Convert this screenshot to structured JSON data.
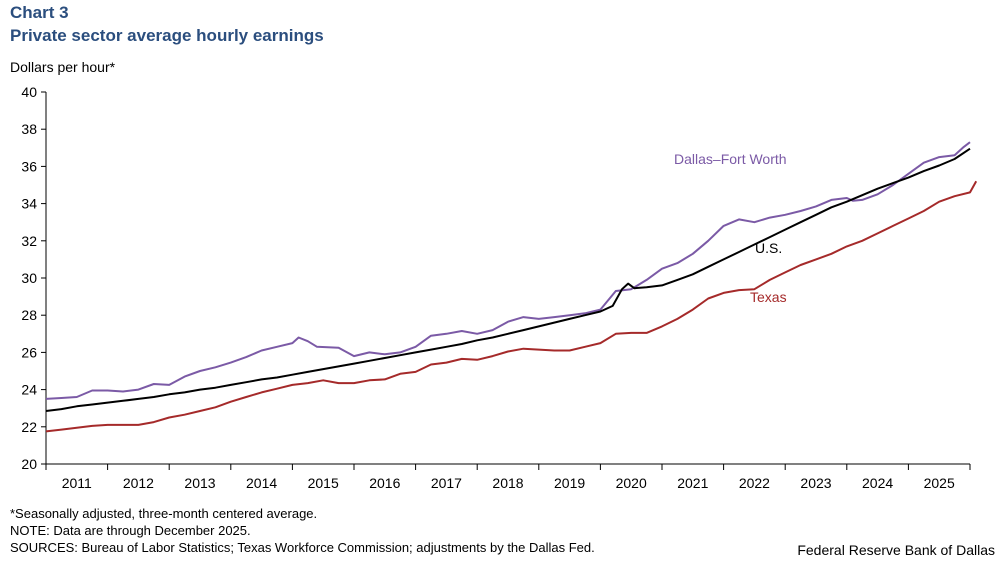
{
  "header": {
    "chart_number": "Chart 3",
    "title": "Private sector average hourly earnings"
  },
  "footer": {
    "note_seasonal": "*Seasonally adjusted, three-month centered average.",
    "note_data": "NOTE: Data are through December 2025.",
    "sources": "SOURCES: Bureau of Labor Statistics; Texas Workforce Commission; adjustments by the Dallas Fed.",
    "credit": "Federal Reserve Bank of Dallas"
  },
  "colors": {
    "dfw": "#7b5aa6",
    "us": "#000000",
    "texas": "#a52a2a",
    "axis": "#000000"
  },
  "chart_data": {
    "type": "line",
    "title": "Private sector average hourly earnings",
    "ylabel": "Dollars per hour*",
    "xlabel": "",
    "ylim": [
      20,
      40
    ],
    "yticks": [
      20,
      22,
      24,
      26,
      28,
      30,
      32,
      34,
      36,
      38,
      40
    ],
    "xlim": [
      2011.0,
      2026.0
    ],
    "x_tick_labels": [
      "2011",
      "2012",
      "2013",
      "2014",
      "2015",
      "2016",
      "2017",
      "2018",
      "2019",
      "2020",
      "2021",
      "2022",
      "2023",
      "2024",
      "2025"
    ],
    "grid": false,
    "series": [
      {
        "name": "Dallas–Fort Worth",
        "label": "Dallas–Fort Worth",
        "color_key": "dfw",
        "points": [
          [
            2011.0,
            23.5
          ],
          [
            2011.25,
            23.55
          ],
          [
            2011.5,
            23.6
          ],
          [
            2011.75,
            23.95
          ],
          [
            2012.0,
            23.95
          ],
          [
            2012.25,
            23.9
          ],
          [
            2012.5,
            24.0
          ],
          [
            2012.75,
            24.3
          ],
          [
            2013.0,
            24.25
          ],
          [
            2013.25,
            24.7
          ],
          [
            2013.5,
            25.0
          ],
          [
            2013.75,
            25.2
          ],
          [
            2014.0,
            25.45
          ],
          [
            2014.25,
            25.75
          ],
          [
            2014.5,
            26.1
          ],
          [
            2014.75,
            26.3
          ],
          [
            2015.0,
            26.5
          ],
          [
            2015.1,
            26.8
          ],
          [
            2015.25,
            26.6
          ],
          [
            2015.4,
            26.3
          ],
          [
            2015.75,
            26.25
          ],
          [
            2016.0,
            25.8
          ],
          [
            2016.25,
            26.0
          ],
          [
            2016.5,
            25.9
          ],
          [
            2016.75,
            26.0
          ],
          [
            2017.0,
            26.3
          ],
          [
            2017.25,
            26.9
          ],
          [
            2017.5,
            27.0
          ],
          [
            2017.75,
            27.15
          ],
          [
            2018.0,
            27.0
          ],
          [
            2018.25,
            27.2
          ],
          [
            2018.5,
            27.65
          ],
          [
            2018.75,
            27.9
          ],
          [
            2019.0,
            27.8
          ],
          [
            2019.25,
            27.9
          ],
          [
            2019.5,
            28.0
          ],
          [
            2019.75,
            28.1
          ],
          [
            2020.0,
            28.3
          ],
          [
            2020.25,
            29.3
          ],
          [
            2020.5,
            29.4
          ],
          [
            2020.75,
            29.9
          ],
          [
            2021.0,
            30.5
          ],
          [
            2021.25,
            30.8
          ],
          [
            2021.5,
            31.3
          ],
          [
            2021.75,
            32.0
          ],
          [
            2022.0,
            32.8
          ],
          [
            2022.25,
            33.15
          ],
          [
            2022.5,
            33.0
          ],
          [
            2022.75,
            33.25
          ],
          [
            2023.0,
            33.4
          ],
          [
            2023.25,
            33.6
          ],
          [
            2023.5,
            33.85
          ],
          [
            2023.75,
            34.2
          ],
          [
            2024.0,
            34.3
          ],
          [
            2024.1,
            34.15
          ],
          [
            2024.25,
            34.2
          ],
          [
            2024.5,
            34.5
          ],
          [
            2024.75,
            35.0
          ],
          [
            2025.0,
            35.6
          ],
          [
            2025.25,
            36.2
          ],
          [
            2025.5,
            36.5
          ],
          [
            2025.75,
            36.6
          ],
          [
            2025.9,
            37.05
          ],
          [
            2026.0,
            37.3
          ]
        ]
      },
      {
        "name": "U.S.",
        "label": "U.S.",
        "color_key": "us",
        "points": [
          [
            2011.0,
            22.85
          ],
          [
            2011.25,
            22.95
          ],
          [
            2011.5,
            23.1
          ],
          [
            2011.75,
            23.2
          ],
          [
            2012.0,
            23.3
          ],
          [
            2012.25,
            23.4
          ],
          [
            2012.5,
            23.5
          ],
          [
            2012.75,
            23.6
          ],
          [
            2013.0,
            23.75
          ],
          [
            2013.25,
            23.85
          ],
          [
            2013.5,
            24.0
          ],
          [
            2013.75,
            24.1
          ],
          [
            2014.0,
            24.25
          ],
          [
            2014.25,
            24.4
          ],
          [
            2014.5,
            24.55
          ],
          [
            2014.75,
            24.65
          ],
          [
            2015.0,
            24.8
          ],
          [
            2015.25,
            24.95
          ],
          [
            2015.5,
            25.1
          ],
          [
            2015.75,
            25.25
          ],
          [
            2016.0,
            25.4
          ],
          [
            2016.25,
            25.55
          ],
          [
            2016.5,
            25.7
          ],
          [
            2016.75,
            25.85
          ],
          [
            2017.0,
            26.0
          ],
          [
            2017.25,
            26.15
          ],
          [
            2017.5,
            26.3
          ],
          [
            2017.75,
            26.45
          ],
          [
            2018.0,
            26.65
          ],
          [
            2018.25,
            26.8
          ],
          [
            2018.5,
            27.0
          ],
          [
            2018.75,
            27.2
          ],
          [
            2019.0,
            27.4
          ],
          [
            2019.25,
            27.6
          ],
          [
            2019.5,
            27.8
          ],
          [
            2019.75,
            28.0
          ],
          [
            2020.0,
            28.2
          ],
          [
            2020.2,
            28.5
          ],
          [
            2020.35,
            29.4
          ],
          [
            2020.45,
            29.7
          ],
          [
            2020.55,
            29.45
          ],
          [
            2020.75,
            29.5
          ],
          [
            2021.0,
            29.6
          ],
          [
            2021.25,
            29.9
          ],
          [
            2021.5,
            30.2
          ],
          [
            2021.75,
            30.6
          ],
          [
            2022.0,
            31.0
          ],
          [
            2022.25,
            31.4
          ],
          [
            2022.5,
            31.8
          ],
          [
            2022.75,
            32.2
          ],
          [
            2023.0,
            32.6
          ],
          [
            2023.25,
            33.0
          ],
          [
            2023.5,
            33.4
          ],
          [
            2023.75,
            33.8
          ],
          [
            2024.0,
            34.1
          ],
          [
            2024.25,
            34.45
          ],
          [
            2024.5,
            34.8
          ],
          [
            2024.75,
            35.1
          ],
          [
            2025.0,
            35.4
          ],
          [
            2025.25,
            35.75
          ],
          [
            2025.5,
            36.05
          ],
          [
            2025.75,
            36.4
          ],
          [
            2026.0,
            36.95
          ]
        ]
      },
      {
        "name": "Texas",
        "label": "Texas",
        "color_key": "texas",
        "points": [
          [
            2011.0,
            21.75
          ],
          [
            2011.25,
            21.85
          ],
          [
            2011.5,
            21.95
          ],
          [
            2011.75,
            22.05
          ],
          [
            2012.0,
            22.1
          ],
          [
            2012.25,
            22.1
          ],
          [
            2012.5,
            22.1
          ],
          [
            2012.75,
            22.25
          ],
          [
            2013.0,
            22.5
          ],
          [
            2013.25,
            22.65
          ],
          [
            2013.5,
            22.85
          ],
          [
            2013.75,
            23.05
          ],
          [
            2014.0,
            23.35
          ],
          [
            2014.25,
            23.6
          ],
          [
            2014.5,
            23.85
          ],
          [
            2014.75,
            24.05
          ],
          [
            2015.0,
            24.25
          ],
          [
            2015.25,
            24.35
          ],
          [
            2015.5,
            24.5
          ],
          [
            2015.75,
            24.35
          ],
          [
            2016.0,
            24.35
          ],
          [
            2016.25,
            24.5
          ],
          [
            2016.5,
            24.55
          ],
          [
            2016.75,
            24.85
          ],
          [
            2017.0,
            24.95
          ],
          [
            2017.25,
            25.35
          ],
          [
            2017.5,
            25.45
          ],
          [
            2017.75,
            25.65
          ],
          [
            2018.0,
            25.6
          ],
          [
            2018.25,
            25.8
          ],
          [
            2018.5,
            26.05
          ],
          [
            2018.75,
            26.2
          ],
          [
            2019.0,
            26.15
          ],
          [
            2019.25,
            26.1
          ],
          [
            2019.5,
            26.1
          ],
          [
            2019.75,
            26.3
          ],
          [
            2020.0,
            26.5
          ],
          [
            2020.25,
            27.0
          ],
          [
            2020.5,
            27.05
          ],
          [
            2020.75,
            27.05
          ],
          [
            2021.0,
            27.4
          ],
          [
            2021.25,
            27.8
          ],
          [
            2021.5,
            28.3
          ],
          [
            2021.75,
            28.9
          ],
          [
            2022.0,
            29.2
          ],
          [
            2022.25,
            29.35
          ],
          [
            2022.5,
            29.4
          ],
          [
            2022.75,
            29.9
          ],
          [
            2023.0,
            30.3
          ],
          [
            2023.25,
            30.7
          ],
          [
            2023.5,
            31.0
          ],
          [
            2023.75,
            31.3
          ],
          [
            2024.0,
            31.7
          ],
          [
            2024.25,
            32.0
          ],
          [
            2024.5,
            32.4
          ],
          [
            2024.75,
            32.8
          ],
          [
            2025.0,
            33.2
          ],
          [
            2025.25,
            33.6
          ],
          [
            2025.5,
            34.1
          ],
          [
            2025.75,
            34.4
          ],
          [
            2026.0,
            34.6
          ],
          [
            2026.1,
            35.2
          ]
        ]
      }
    ],
    "annotations": [
      {
        "text": "Dallas–Fort Worth",
        "series": "dfw"
      },
      {
        "text": "U.S.",
        "series": "us"
      },
      {
        "text": "Texas",
        "series": "texas"
      }
    ]
  }
}
